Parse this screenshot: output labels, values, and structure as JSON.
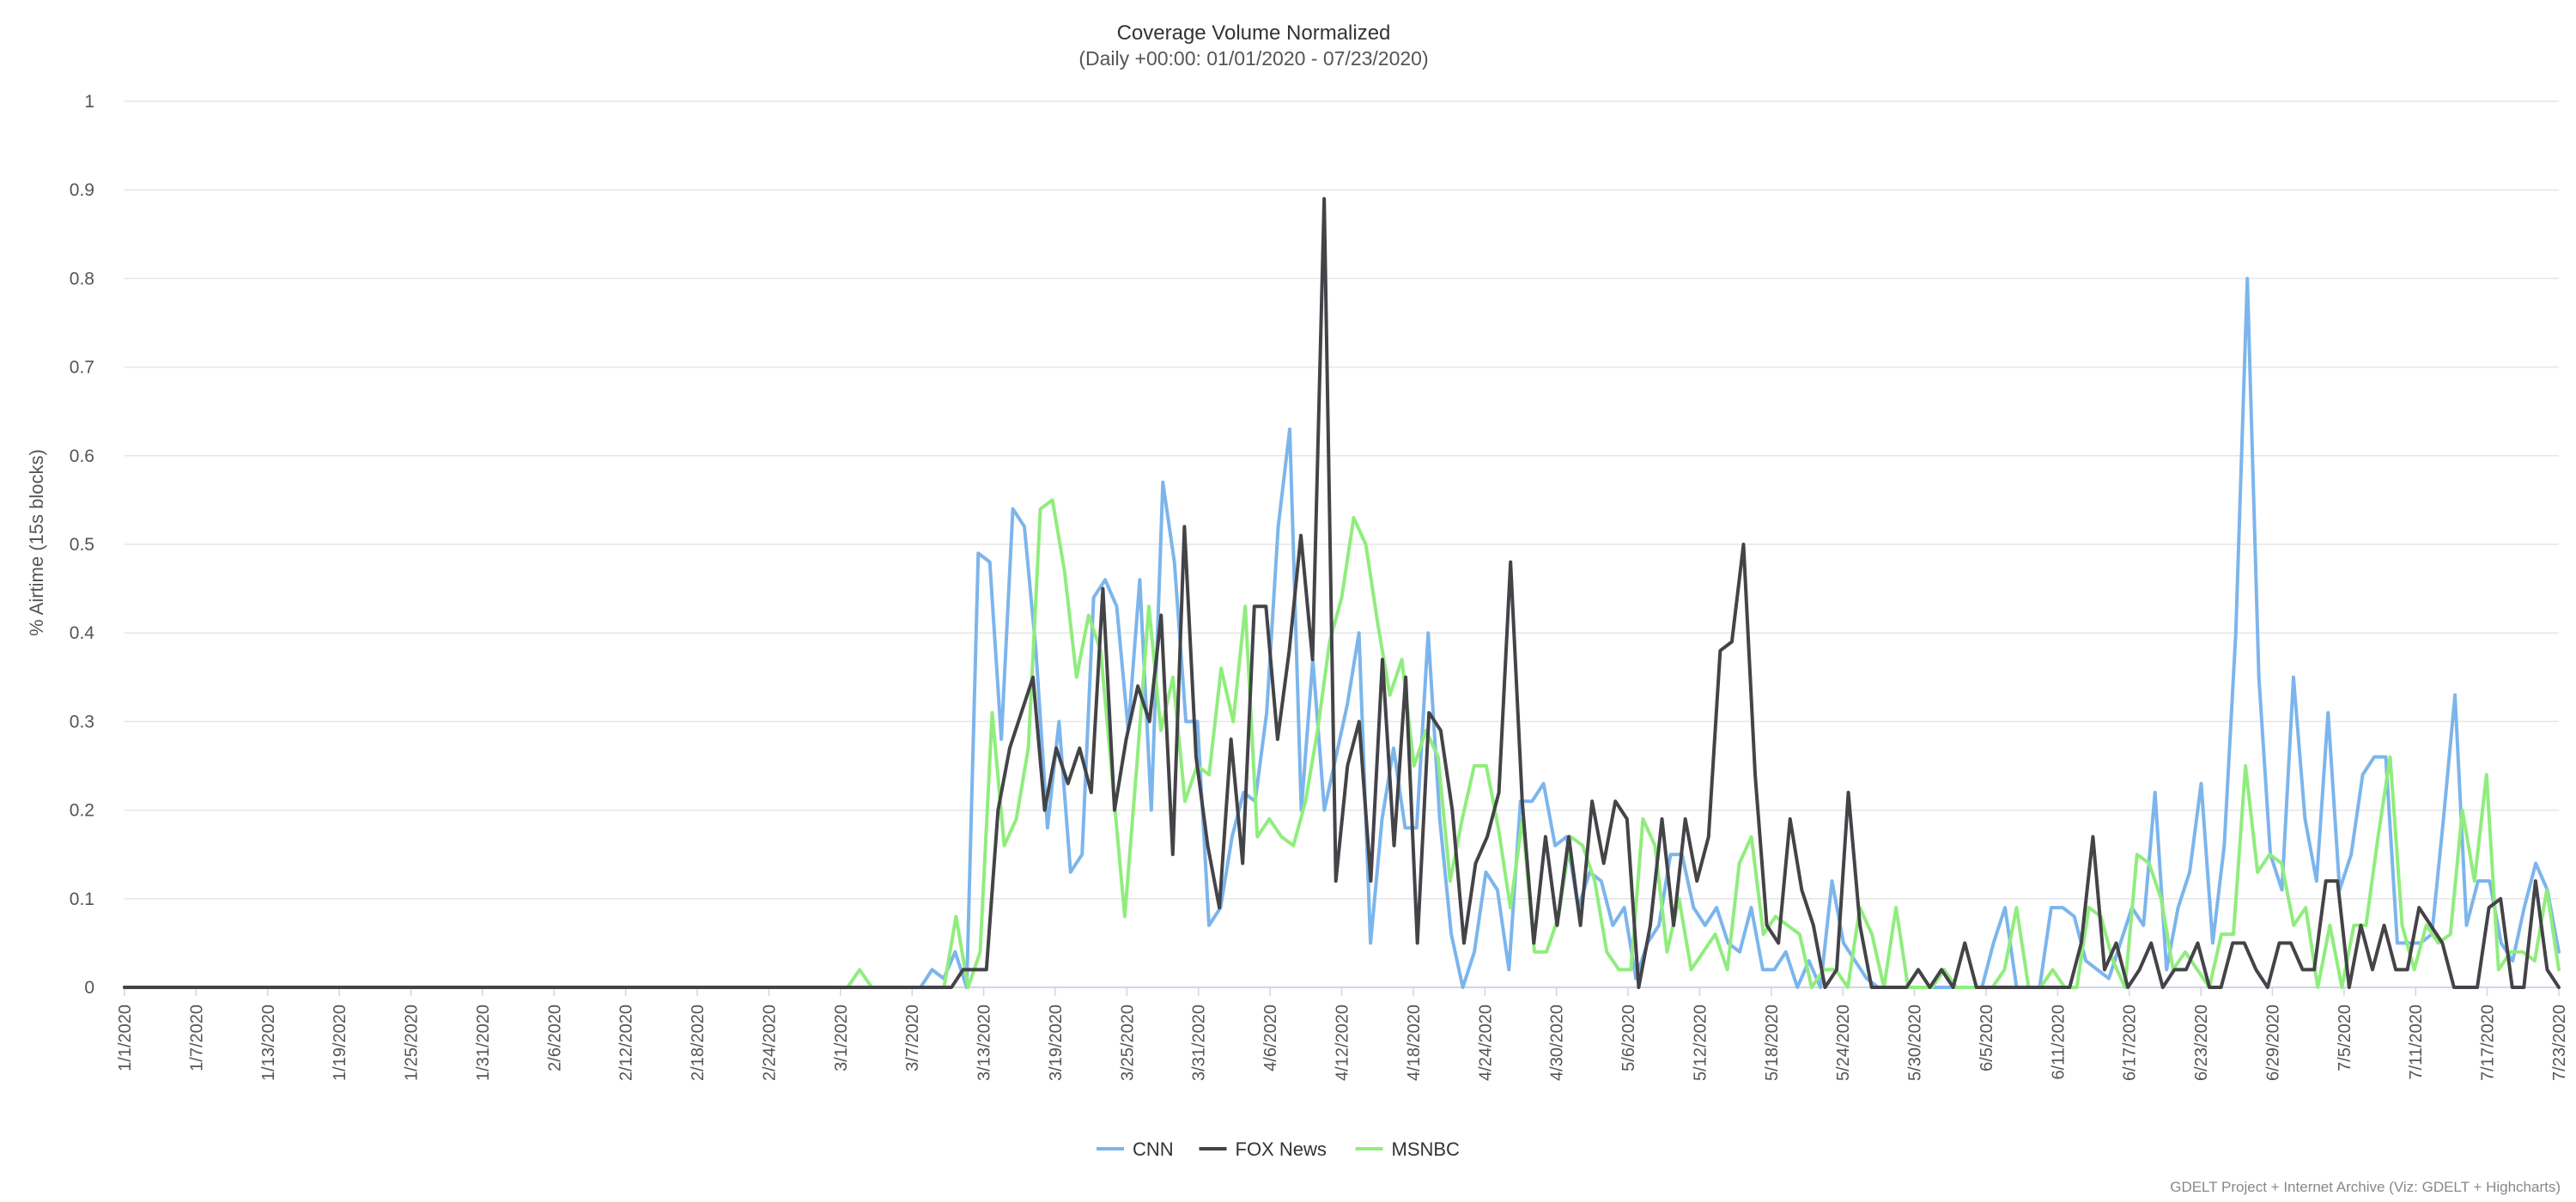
{
  "chart_data": {
    "type": "line",
    "title": "Coverage Volume Normalized",
    "subtitle": "(Daily +00:00: 01/01/2020 - 07/23/2020)",
    "xlabel": "",
    "ylabel": "% Airtime (15s blocks)",
    "ylim": [
      0,
      1
    ],
    "yticks": [
      "0",
      "0.1",
      "0.2",
      "0.3",
      "0.4",
      "0.5",
      "0.6",
      "0.7",
      "0.8",
      "0.9",
      "1"
    ],
    "x_start": "1/1/2020",
    "x_end": "7/23/2020",
    "xticks": [
      "1/1/2020",
      "1/7/2020",
      "1/13/2020",
      "1/19/2020",
      "1/25/2020",
      "1/31/2020",
      "2/6/2020",
      "2/12/2020",
      "2/18/2020",
      "2/24/2020",
      "3/1/2020",
      "3/7/2020",
      "3/13/2020",
      "3/19/2020",
      "3/25/2020",
      "3/31/2020",
      "4/6/2020",
      "4/12/2020",
      "4/18/2020",
      "4/24/2020",
      "4/30/2020",
      "5/6/2020",
      "5/12/2020",
      "5/18/2020",
      "5/24/2020",
      "5/30/2020",
      "6/5/2020",
      "6/11/2020",
      "6/17/2020",
      "6/23/2020",
      "6/29/2020",
      "7/5/2020",
      "7/11/2020",
      "7/17/2020",
      "7/23/2020"
    ],
    "grid": true,
    "legend": "bottom-center",
    "series": [
      {
        "name": "CNN",
        "color": "#7cb5ec",
        "values": [
          0,
          0,
          0,
          0,
          0,
          0,
          0,
          0,
          0,
          0,
          0,
          0,
          0,
          0,
          0,
          0,
          0,
          0,
          0,
          0,
          0,
          0,
          0,
          0,
          0,
          0,
          0,
          0,
          0,
          0,
          0,
          0,
          0,
          0,
          0,
          0,
          0,
          0,
          0,
          0,
          0,
          0,
          0,
          0,
          0,
          0,
          0,
          0,
          0,
          0,
          0,
          0,
          0,
          0,
          0,
          0,
          0,
          0,
          0,
          0,
          0,
          0,
          0,
          0,
          0,
          0,
          0,
          0,
          0,
          0,
          0.02,
          0.01,
          0.04,
          0,
          0.49,
          0.48,
          0.28,
          0.54,
          0.52,
          0.38,
          0.18,
          0.3,
          0.13,
          0.15,
          0.44,
          0.46,
          0.43,
          0.29,
          0.46,
          0.2,
          0.57,
          0.48,
          0.3,
          0.3,
          0.07,
          0.09,
          0.17,
          0.22,
          0.21,
          0.31,
          0.52,
          0.63,
          0.2,
          0.37,
          0.2,
          0.26,
          0.32,
          0.4,
          0.05,
          0.19,
          0.27,
          0.18,
          0.18,
          0.4,
          0.19,
          0.06,
          0,
          0.04,
          0.13,
          0.11,
          0.02,
          0.21,
          0.21,
          0.23,
          0.16,
          0.17,
          0.09,
          0.13,
          0.12,
          0.07,
          0.09,
          0.01,
          0.05,
          0.07,
          0.15,
          0.15,
          0.09,
          0.07,
          0.09,
          0.05,
          0.04,
          0.09,
          0.02,
          0.02,
          0.04,
          0,
          0.03,
          0,
          0.12,
          0.05,
          0.03,
          0.01,
          0,
          0,
          0,
          0,
          0,
          0,
          0,
          0,
          0,
          0,
          0.05,
          0.09,
          0,
          0,
          0,
          0.09,
          0.09,
          0.08,
          0.03,
          0.02,
          0.01,
          0.05,
          0.09,
          0.07,
          0.22,
          0.02,
          0.09,
          0.13,
          0.23,
          0.05,
          0.16,
          0.4,
          0.8,
          0.35,
          0.15,
          0.11,
          0.35,
          0.19,
          0.12,
          0.31,
          0.11,
          0.15,
          0.24,
          0.26,
          0.26,
          0.05,
          0.05,
          0.05,
          0.06,
          0.19,
          0.33,
          0.07,
          0.12,
          0.12,
          0.05,
          0.03,
          0.09,
          0.14,
          0.11,
          0.04
        ]
      },
      {
        "name": "FOX News",
        "color": "#434348",
        "values": [
          0,
          0,
          0,
          0,
          0,
          0,
          0,
          0,
          0,
          0,
          0,
          0,
          0,
          0,
          0,
          0,
          0,
          0,
          0,
          0,
          0,
          0,
          0,
          0,
          0,
          0,
          0,
          0,
          0,
          0,
          0,
          0,
          0,
          0,
          0,
          0,
          0,
          0,
          0,
          0,
          0,
          0,
          0,
          0,
          0,
          0,
          0,
          0,
          0,
          0,
          0,
          0,
          0,
          0,
          0,
          0,
          0,
          0,
          0,
          0,
          0,
          0,
          0,
          0,
          0,
          0,
          0,
          0,
          0,
          0,
          0,
          0,
          0.02,
          0.02,
          0.02,
          0.2,
          0.27,
          0.31,
          0.35,
          0.2,
          0.27,
          0.23,
          0.27,
          0.22,
          0.45,
          0.2,
          0.28,
          0.34,
          0.3,
          0.42,
          0.15,
          0.52,
          0.26,
          0.16,
          0.09,
          0.28,
          0.14,
          0.43,
          0.43,
          0.28,
          0.38,
          0.51,
          0.37,
          0.89,
          0.12,
          0.25,
          0.3,
          0.12,
          0.37,
          0.16,
          0.35,
          0.05,
          0.31,
          0.29,
          0.2,
          0.05,
          0.14,
          0.17,
          0.22,
          0.48,
          0.21,
          0.05,
          0.17,
          0.07,
          0.17,
          0.07,
          0.21,
          0.14,
          0.21,
          0.19,
          0,
          0.07,
          0.19,
          0.07,
          0.19,
          0.12,
          0.17,
          0.38,
          0.39,
          0.5,
          0.24,
          0.07,
          0.05,
          0.19,
          0.11,
          0.07,
          0,
          0.02,
          0.22,
          0.07,
          0,
          0,
          0,
          0,
          0.02,
          0,
          0.02,
          0,
          0.05,
          0,
          0,
          0,
          0,
          0,
          0,
          0,
          0,
          0,
          0.05,
          0.17,
          0.02,
          0.05,
          0,
          0.02,
          0.05,
          0,
          0.02,
          0.02,
          0.05,
          0,
          0,
          0.05,
          0.05,
          0.02,
          0,
          0.05,
          0.05,
          0.02,
          0.02,
          0.12,
          0.12,
          0,
          0.07,
          0.02,
          0.07,
          0.02,
          0.02,
          0.09,
          0.07,
          0.05,
          0,
          0,
          0,
          0.09,
          0.1,
          0,
          0,
          0.12,
          0.02,
          0
        ]
      },
      {
        "name": "MSNBC",
        "color": "#90ed7d",
        "values": [
          0,
          0,
          0,
          0,
          0,
          0,
          0,
          0,
          0,
          0,
          0,
          0,
          0,
          0,
          0,
          0,
          0,
          0,
          0,
          0,
          0,
          0,
          0,
          0,
          0,
          0,
          0,
          0,
          0,
          0,
          0,
          0,
          0,
          0,
          0,
          0,
          0,
          0,
          0,
          0,
          0,
          0,
          0,
          0,
          0,
          0,
          0,
          0,
          0,
          0,
          0,
          0,
          0,
          0,
          0,
          0,
          0,
          0,
          0,
          0,
          0,
          0.02,
          0,
          0,
          0,
          0,
          0,
          0,
          0,
          0.08,
          0,
          0.04,
          0.31,
          0.16,
          0.19,
          0.27,
          0.54,
          0.55,
          0.47,
          0.35,
          0.42,
          0.38,
          0.23,
          0.08,
          0.25,
          0.43,
          0.29,
          0.35,
          0.21,
          0.25,
          0.24,
          0.36,
          0.3,
          0.43,
          0.17,
          0.19,
          0.17,
          0.16,
          0.21,
          0.29,
          0.39,
          0.44,
          0.53,
          0.5,
          0.41,
          0.33,
          0.37,
          0.25,
          0.29,
          0.26,
          0.12,
          0.19,
          0.25,
          0.25,
          0.18,
          0.09,
          0.19,
          0.04,
          0.04,
          0.08,
          0.17,
          0.16,
          0.12,
          0.04,
          0.02,
          0.02,
          0.19,
          0.16,
          0.04,
          0.1,
          0.02,
          0.04,
          0.06,
          0.02,
          0.14,
          0.17,
          0.06,
          0.08,
          0.07,
          0.06,
          0,
          0.02,
          0.02,
          0,
          0.09,
          0.06,
          0,
          0.09,
          0,
          0,
          0,
          0.02,
          0,
          0,
          0,
          0,
          0.02,
          0.09,
          0,
          0,
          0.02,
          0,
          0,
          0.09,
          0.08,
          0.03,
          0,
          0.15,
          0.14,
          0.1,
          0.02,
          0.04,
          0.02,
          0,
          0.06,
          0.06,
          0.25,
          0.13,
          0.15,
          0.14,
          0.07,
          0.09,
          0,
          0.07,
          0,
          0.07,
          0.07,
          0.17,
          0.26,
          0.07,
          0.02,
          0.07,
          0.05,
          0.06,
          0.2,
          0.12,
          0.24,
          0.02,
          0.04,
          0.04,
          0.03,
          0.11,
          0.02
        ]
      }
    ]
  },
  "credits": "GDELT Project + Internet Archive (Viz: GDELT + Highcharts)"
}
